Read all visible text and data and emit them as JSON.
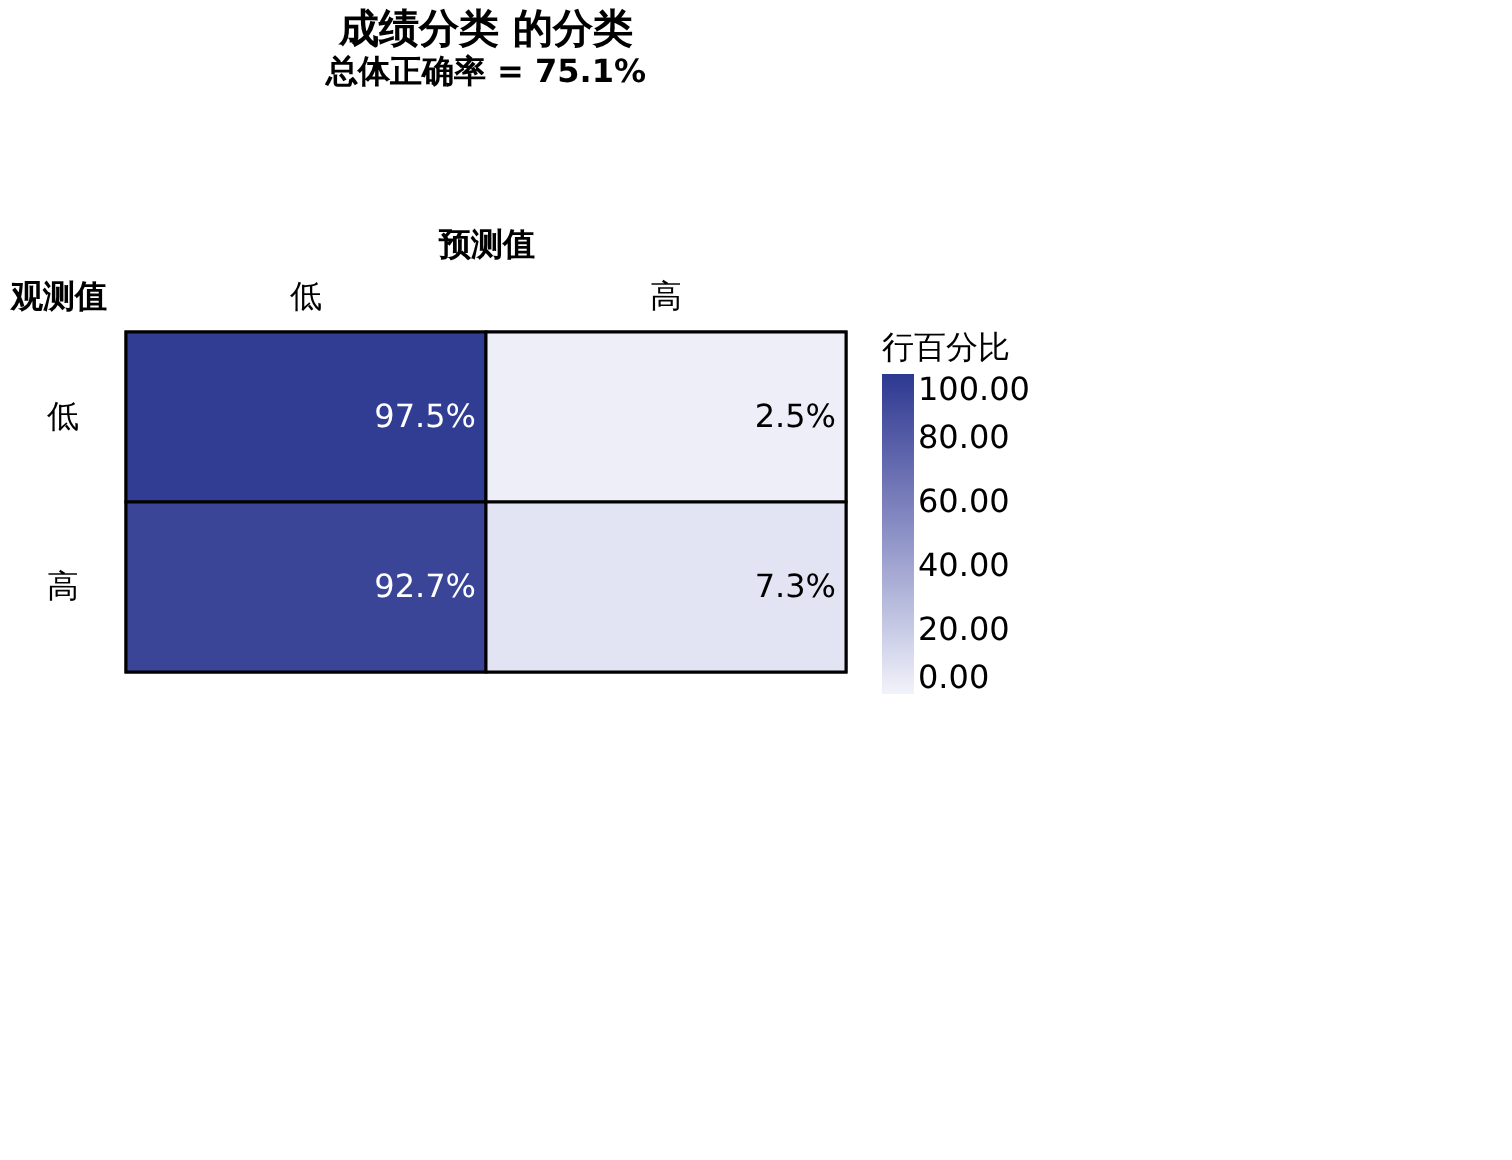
{
  "chart_data": {
    "type": "heatmap",
    "title": "成绩分类 的分类",
    "subtitle": "总体正确率 = 75.1%",
    "xlabel": "预测值",
    "ylabel": "观测值",
    "clabel": "行百分比",
    "categories": [
      "低",
      "高"
    ],
    "y_categories": [
      "低",
      "高"
    ],
    "cells": [
      [
        97.5,
        2.5
      ],
      [
        92.7,
        7.3
      ]
    ],
    "cell_labels": [
      [
        "97.5%",
        "2.5%"
      ],
      [
        "92.7%",
        "7.3%"
      ]
    ],
    "clim": [
      0,
      100
    ],
    "cticks": [
      {
        "value": 0,
        "label": "0.00"
      },
      {
        "value": 20,
        "label": "20.00"
      },
      {
        "value": 40,
        "label": "40.00"
      },
      {
        "value": 60,
        "label": "60.00"
      },
      {
        "value": 80,
        "label": "80.00"
      },
      {
        "value": 100,
        "label": "100.00"
      }
    ]
  }
}
